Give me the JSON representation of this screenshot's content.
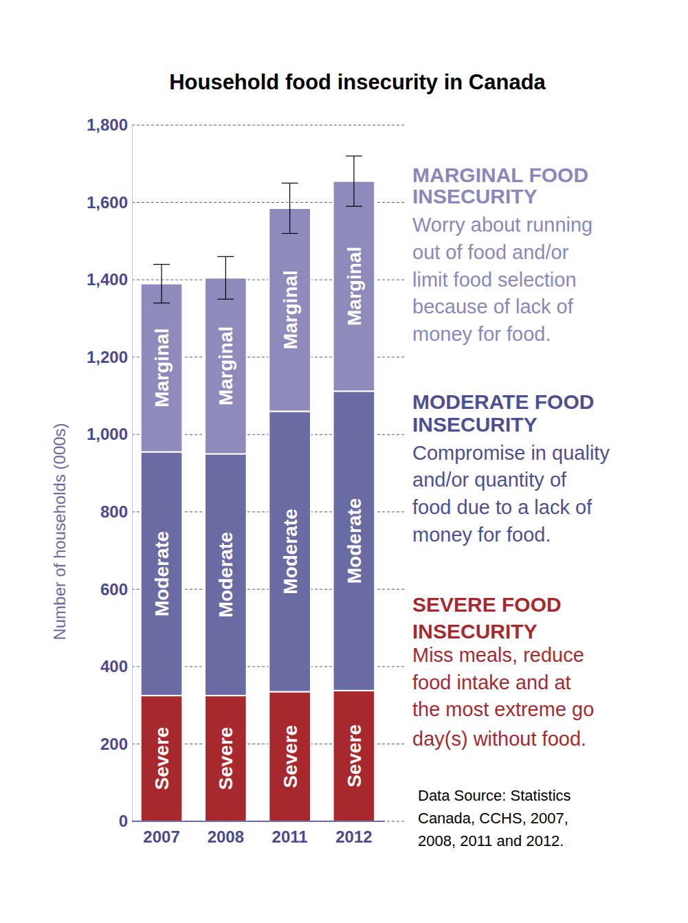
{
  "chart_data": {
    "type": "bar",
    "title": "Household food insecurity in Canada",
    "y_label": "Number of households (000s)",
    "categories": [
      "2007",
      "2008",
      "2011",
      "2012"
    ],
    "stacked": true,
    "grid": true,
    "data_labels": false,
    "series": [
      {
        "name": "Severe",
        "color": "#a8292d",
        "values": [
          325,
          325,
          335,
          338
        ]
      },
      {
        "name": "Moderate",
        "color": "#6b6ba3",
        "values": [
          630,
          625,
          725,
          774
        ]
      },
      {
        "name": "Marginal",
        "color": "#8e8abb",
        "values": [
          435,
          455,
          525,
          543
        ],
        "error": [
          50,
          55,
          65,
          65
        ]
      }
    ],
    "ylim": [
      0,
      1800
    ],
    "yticks": [
      0,
      200,
      400,
      600,
      800,
      {
        "value": 1000,
        "label": "1,000"
      },
      {
        "value": 1200,
        "label": "1,200"
      },
      {
        "value": 1400,
        "label": "1,400"
      },
      {
        "value": 1600,
        "label": "1,600"
      },
      {
        "value": 1800,
        "label": "1,800"
      }
    ],
    "annotations": [
      {
        "heading": [
          "MARGINAL FOOD",
          "INSECURITY"
        ],
        "color": "#8b87bc",
        "lines": [
          "Worry about running",
          "out of food and/or",
          "limit food selection",
          "because of lack of",
          "money for food."
        ]
      },
      {
        "heading": [
          "MODERATE FOOD",
          "INSECURITY"
        ],
        "color": "#4e4f93",
        "lines": [
          "Compromise in quality",
          "and/or quantity of",
          "food due to a lack of",
          "money for food."
        ]
      },
      {
        "heading": [
          "SEVERE FOOD",
          "INSECURITY"
        ],
        "color": "#a8292d",
        "lines": [
          "Miss meals, reduce",
          "food intake and at",
          "the most extreme go",
          "day(s) without food."
        ]
      }
    ],
    "source": [
      "Data Source: Statistics",
      "Canada, CCHS, 2007,",
      "2008, 2011 and 2012."
    ]
  }
}
